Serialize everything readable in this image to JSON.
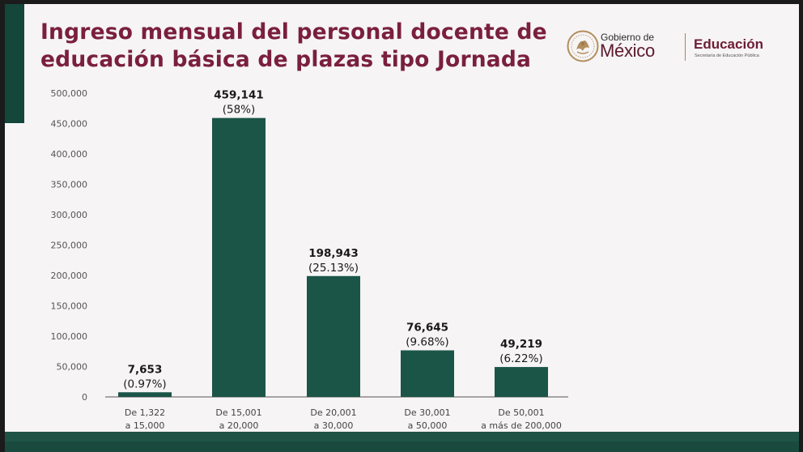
{
  "title": {
    "line1": "Ingreso mensual del personal docente de",
    "line2": "educación básica de plazas tipo Jornada"
  },
  "logo": {
    "gobierno": "Gobierno de",
    "mexico": "México",
    "educacion": "Educación",
    "secretaria": "Secretaría de Educación Pública"
  },
  "colors": {
    "bar": "#1a5548",
    "title": "#7a1f3d",
    "accent": "#14463a"
  },
  "chart_data": {
    "type": "bar",
    "title": "Ingreso mensual del personal docente de educación básica de plazas tipo Jornada",
    "xlabel": "",
    "ylabel": "",
    "ylim": [
      0,
      500000
    ],
    "yticks": [
      "0",
      "50,000",
      "100,000",
      "150,000",
      "200,000",
      "250,000",
      "300,000",
      "350,000",
      "400,000",
      "450,000",
      "500,000"
    ],
    "grid": false,
    "categories": [
      [
        "De 1,322",
        "a 15,000"
      ],
      [
        "De 15,001",
        "a 20,000"
      ],
      [
        "De 20,001",
        "a 30,000"
      ],
      [
        "De 30,001",
        "a 50,000"
      ],
      [
        "De 50,001",
        "a más de 200,000"
      ]
    ],
    "values": [
      7653,
      459141,
      198943,
      76645,
      49219
    ],
    "value_labels": [
      "7,653",
      "459,141",
      "198,943",
      "76,645",
      "49,219"
    ],
    "percent_labels": [
      "(0.97%)",
      "(58%)",
      "(25.13%)",
      "(9.68%)",
      "(6.22%)"
    ]
  }
}
